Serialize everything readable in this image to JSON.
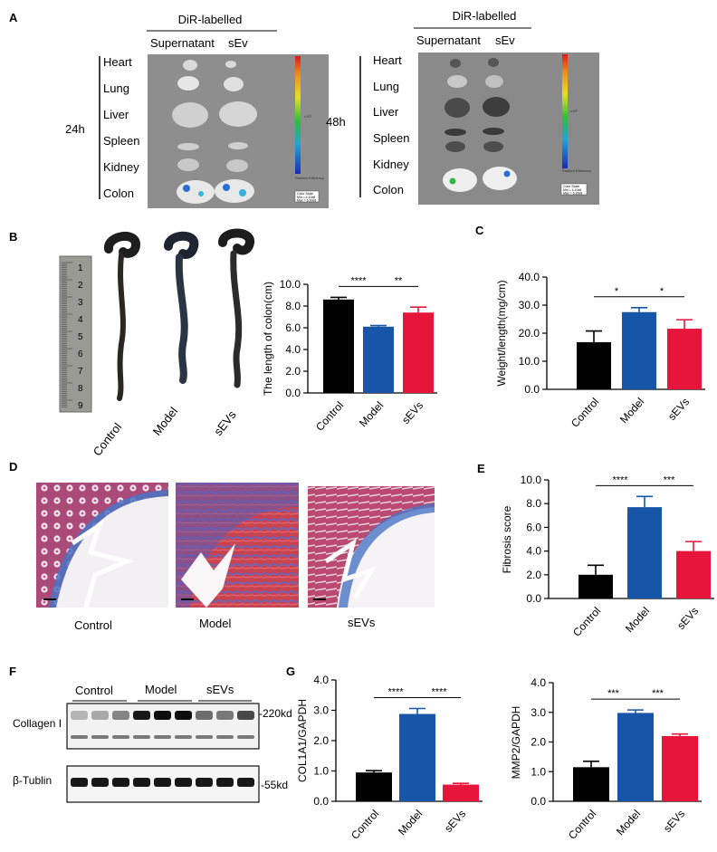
{
  "panels": {
    "A": {
      "letter": "A",
      "left": {
        "header": "DiR-labelled",
        "col1": "Supernatant",
        "col2": "sEv",
        "time": "24h",
        "organs": [
          "Heart",
          "Lung",
          "Liver",
          "Spleen",
          "Kidney",
          "Colon"
        ],
        "scale_caption": "Radiant Efficiency",
        "scale_unit": "x10⁸",
        "color_scale": "Color Scale",
        "min": "Min = 4.10e6",
        "max": "Max = 6.30e8"
      },
      "right": {
        "header": "DiR-labelled",
        "col1": "Supernatant",
        "col2": "sEv",
        "time": "48h",
        "organs": [
          "Heart",
          "Lung",
          "Liver",
          "Spleen",
          "Kidney",
          "Colon"
        ],
        "scale_caption": "Radiant Efficiency",
        "scale_unit": "x10⁸",
        "color_scale": "Color Scale",
        "min": "Min = 4.10e6",
        "max": "Max = 6.30e8"
      }
    },
    "B": {
      "letter": "B",
      "photo_labels": [
        "Control",
        "Model",
        "sEVs"
      ],
      "ruler_numbers": [
        "1",
        "2",
        "3",
        "4",
        "5",
        "6",
        "7",
        "8",
        "9"
      ]
    },
    "C": {
      "letter": "C"
    },
    "D": {
      "letter": "D",
      "image_labels": [
        "Control",
        "Model",
        "sEVs"
      ]
    },
    "E": {
      "letter": "E"
    },
    "F": {
      "letter": "F",
      "groups": [
        "Control",
        "Model",
        "sEVs"
      ],
      "bands": [
        {
          "name": "Collagen I",
          "size": "-220kd"
        },
        {
          "name": "β-Tublin",
          "size": "-55kd"
        }
      ]
    },
    "G": {
      "letter": "G"
    }
  },
  "chart_data": [
    {
      "id": "B",
      "type": "bar",
      "categories": [
        "Control",
        "Model",
        "sEVs"
      ],
      "values": [
        8.6,
        6.1,
        7.4
      ],
      "errors": [
        0.2,
        0.1,
        0.5
      ],
      "colors": [
        "#000000",
        "#1755a8",
        "#e8153b"
      ],
      "ylabel": "The length of colon(cm)",
      "ylim": [
        0,
        10
      ],
      "ticks": [
        "0.0",
        "2.0",
        "4.0",
        "6.0",
        "8.0",
        "10.0"
      ],
      "significance": [
        {
          "from": 0,
          "to": 1,
          "label": "****"
        },
        {
          "from": 1,
          "to": 2,
          "label": "**"
        }
      ]
    },
    {
      "id": "C",
      "type": "bar",
      "categories": [
        "Control",
        "Model",
        "sEVs"
      ],
      "values": [
        16.8,
        27.5,
        21.6
      ],
      "errors": [
        4.0,
        1.6,
        3.2
      ],
      "colors": [
        "#000000",
        "#1755a8",
        "#e8153b"
      ],
      "ylabel": "Weight/length(mg/cm)",
      "ylim": [
        0,
        40
      ],
      "ticks": [
        "0.0",
        "10.0",
        "20.0",
        "30.0",
        "40.0"
      ],
      "significance": [
        {
          "from": 0,
          "to": 1,
          "label": "*"
        },
        {
          "from": 1,
          "to": 2,
          "label": "*"
        }
      ]
    },
    {
      "id": "E",
      "type": "bar",
      "categories": [
        "Control",
        "Model",
        "sEVs"
      ],
      "values": [
        2.0,
        7.7,
        4.0
      ],
      "errors": [
        0.8,
        0.9,
        0.8
      ],
      "colors": [
        "#000000",
        "#1755a8",
        "#e8153b"
      ],
      "ylabel": "Fibrosis score",
      "ylim": [
        0,
        10
      ],
      "ticks": [
        "0.0",
        "2.0",
        "4.0",
        "6.0",
        "8.0",
        "10.0"
      ],
      "significance": [
        {
          "from": 0,
          "to": 1,
          "label": "****"
        },
        {
          "from": 1,
          "to": 2,
          "label": "***"
        }
      ]
    },
    {
      "id": "G1",
      "type": "bar",
      "categories": [
        "Control",
        "Model",
        "sEVs"
      ],
      "values": [
        0.95,
        2.88,
        0.55
      ],
      "errors": [
        0.06,
        0.18,
        0.04
      ],
      "colors": [
        "#000000",
        "#1755a8",
        "#e8153b"
      ],
      "ylabel": "COL1A1/GAPDH",
      "ylim": [
        0,
        4
      ],
      "ticks": [
        "0.0",
        "1.0",
        "2.0",
        "3.0",
        "4.0"
      ],
      "significance": [
        {
          "from": 0,
          "to": 1,
          "label": "****"
        },
        {
          "from": 1,
          "to": 2,
          "label": "****"
        }
      ]
    },
    {
      "id": "G2",
      "type": "bar",
      "categories": [
        "Control",
        "Model",
        "sEVs"
      ],
      "values": [
        1.15,
        2.98,
        2.2
      ],
      "errors": [
        0.2,
        0.1,
        0.07
      ],
      "colors": [
        "#000000",
        "#1755a8",
        "#e8153b"
      ],
      "ylabel": "MMP2/GAPDH",
      "ylim": [
        0,
        4
      ],
      "ticks": [
        "0.0",
        "1.0",
        "2.0",
        "3.0",
        "4.0"
      ],
      "significance": [
        {
          "from": 0,
          "to": 1,
          "label": "***"
        },
        {
          "from": 1,
          "to": 2,
          "label": "***"
        }
      ]
    }
  ]
}
